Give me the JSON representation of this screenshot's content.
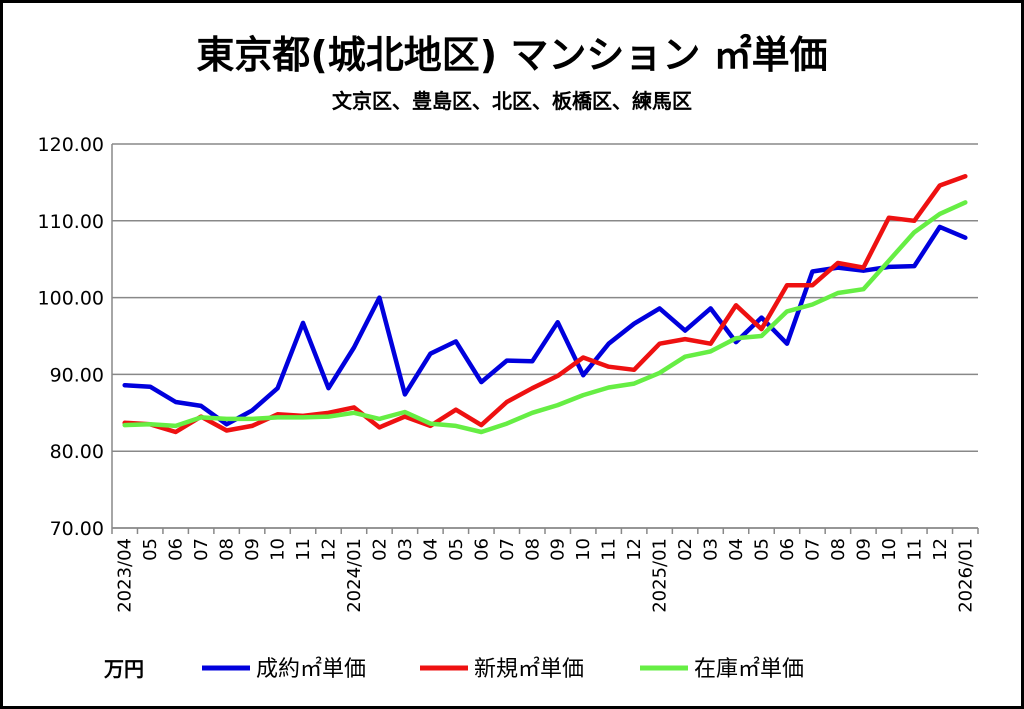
{
  "chart_data": {
    "type": "line",
    "title": "東京都(城北地区) マンション ㎡単価",
    "subtitle": "文京区、豊島区、北区、板橋区、練馬区",
    "unit_label": "万円",
    "ylim": [
      70,
      120
    ],
    "yticks": [
      "120.00",
      "110.00",
      "100.00",
      "90.00",
      "80.00",
      "70.00"
    ],
    "ytick_values": [
      120,
      110,
      100,
      90,
      80,
      70
    ],
    "grid": true,
    "legend_position": "bottom",
    "categories": [
      "2023/04",
      "05",
      "06",
      "07",
      "08",
      "09",
      "10",
      "11",
      "12",
      "2024/01",
      "02",
      "03",
      "04",
      "05",
      "06",
      "07",
      "08",
      "09",
      "10",
      "11",
      "12",
      "2025/01",
      "02",
      "03",
      "04",
      "05",
      "06",
      "07",
      "08",
      "09",
      "10",
      "11",
      "12",
      "2026/01"
    ],
    "series": [
      {
        "name": "成約㎡単価",
        "color": "#0000dd",
        "values": [
          88.6,
          88.4,
          86.4,
          85.9,
          83.5,
          85.3,
          88.2,
          96.7,
          88.2,
          93.5,
          100.0,
          87.4,
          92.7,
          94.3,
          89.0,
          91.8,
          91.7,
          96.8,
          89.9,
          94.0,
          96.6,
          98.6,
          95.7,
          98.6,
          94.2,
          97.4,
          94.0,
          103.4,
          103.9,
          103.5,
          104.0,
          104.1,
          109.2,
          107.8
        ]
      },
      {
        "name": "新規㎡単価",
        "color": "#ee1111",
        "values": [
          83.7,
          83.5,
          82.5,
          84.5,
          82.7,
          83.3,
          84.8,
          84.6,
          85.0,
          85.7,
          83.1,
          84.5,
          83.3,
          85.4,
          83.4,
          86.4,
          88.2,
          89.8,
          92.2,
          91.0,
          90.6,
          94.0,
          94.6,
          94.0,
          99.0,
          95.9,
          101.6,
          101.6,
          104.5,
          103.9,
          110.4,
          110.0,
          114.6,
          115.8
        ]
      },
      {
        "name": "在庫㎡単価",
        "color": "#66ee44",
        "values": [
          83.4,
          83.5,
          83.3,
          84.4,
          84.2,
          84.2,
          84.4,
          84.4,
          84.5,
          85.0,
          84.2,
          85.1,
          83.6,
          83.3,
          82.5,
          83.6,
          85.0,
          86.0,
          87.3,
          88.3,
          88.8,
          90.2,
          92.3,
          93.0,
          94.7,
          95.0,
          98.2,
          99.1,
          100.6,
          101.1,
          104.8,
          108.5,
          110.9,
          112.4
        ]
      }
    ]
  }
}
